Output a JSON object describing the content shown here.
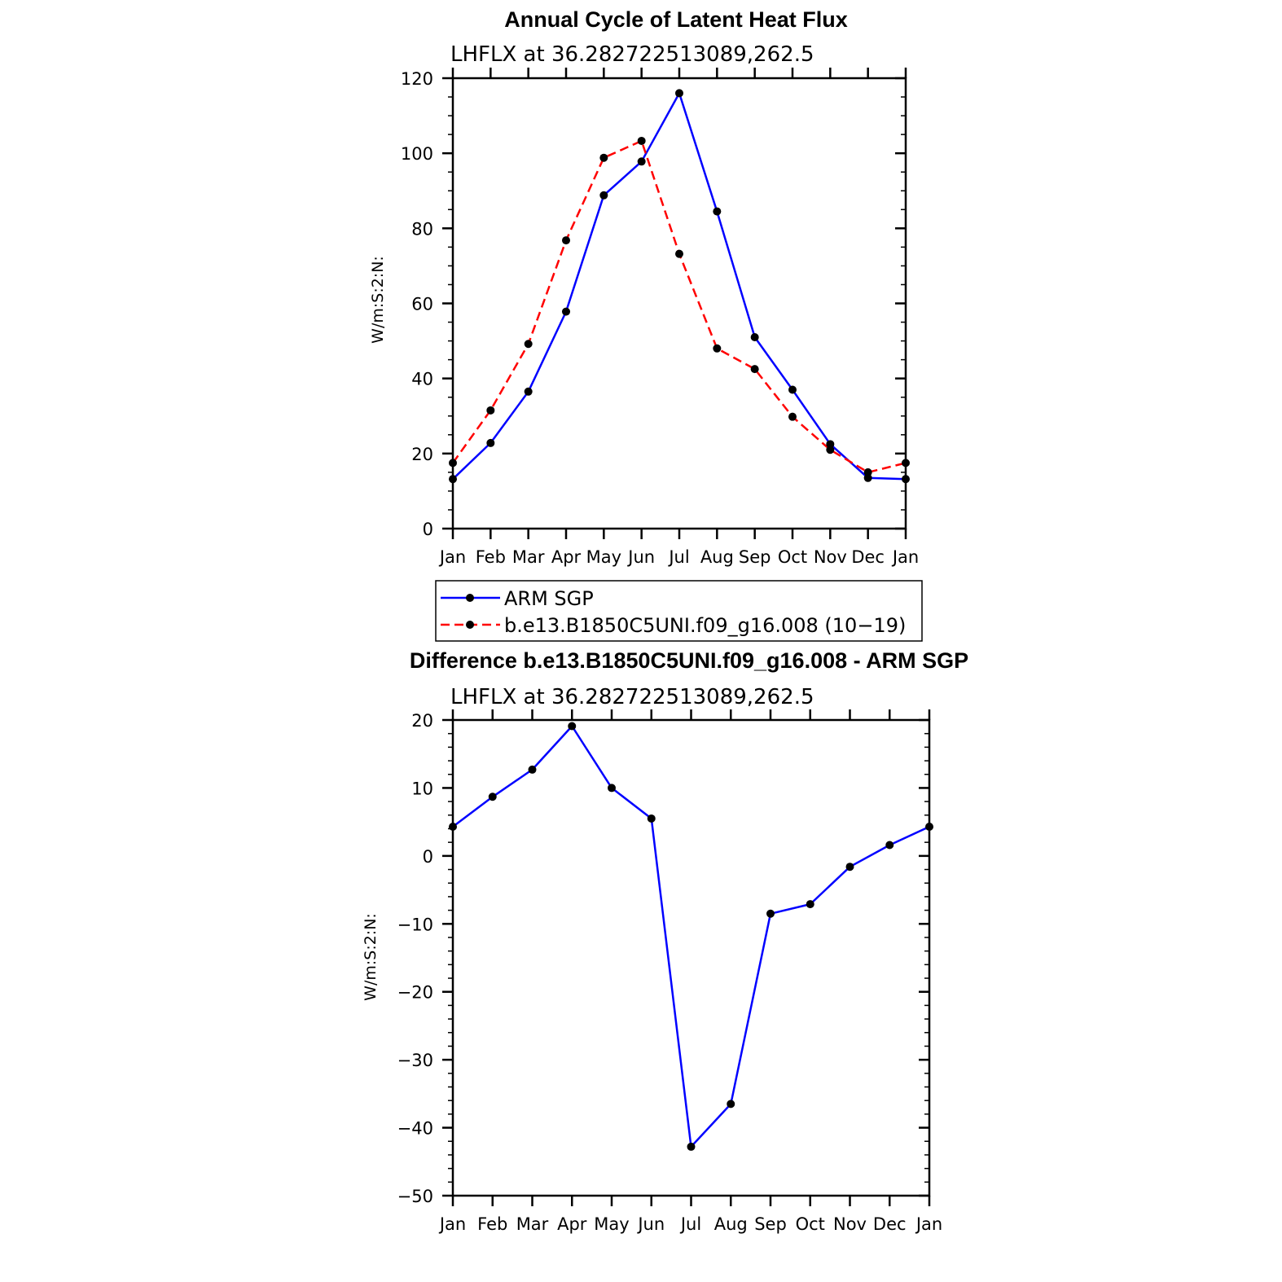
{
  "chart_data": [
    {
      "type": "line",
      "title": "Annual Cycle of Latent Heat Flux",
      "subtitle": "LHFLX at 36.282722513089,262.5",
      "xlabel": "",
      "ylabel": "W/m:S:2:N:",
      "ylim": [
        0,
        120
      ],
      "yticks": [
        "0",
        "20",
        "40",
        "60",
        "80",
        "100",
        "120"
      ],
      "categories": [
        "Jan",
        "Feb",
        "Mar",
        "Apr",
        "May",
        "Jun",
        "Jul",
        "Aug",
        "Sep",
        "Oct",
        "Nov",
        "Dec",
        "Jan"
      ],
      "series": [
        {
          "name": "ARM SGP",
          "color": "#0000ff",
          "dash": "solid",
          "values": [
            13.2,
            22.8,
            36.5,
            57.8,
            88.8,
            97.8,
            116.0,
            84.5,
            51.0,
            37.0,
            22.5,
            13.5,
            13.2
          ]
        },
        {
          "name": "b.e13.B1850C5UNI.f09_g16.008 (10−19)",
          "color": "#ff0000",
          "dash": "dashed",
          "values": [
            17.5,
            31.5,
            49.2,
            76.8,
            98.8,
            103.3,
            73.2,
            48.0,
            42.5,
            29.8,
            21.0,
            15.0,
            17.5
          ]
        }
      ]
    },
    {
      "type": "line",
      "title": "Difference b.e13.B1850C5UNI.f09_g16.008 - ARM SGP",
      "subtitle": "LHFLX at 36.282722513089,262.5",
      "xlabel": "",
      "ylabel": "W/m:S:2:N:",
      "ylim": [
        -50,
        20
      ],
      "yticks": [
        "−50",
        "−40",
        "−30",
        "−20",
        "−10",
        "0",
        "10",
        "20"
      ],
      "categories": [
        "Jan",
        "Feb",
        "Mar",
        "Apr",
        "May",
        "Jun",
        "Jul",
        "Aug",
        "Sep",
        "Oct",
        "Nov",
        "Dec",
        "Jan"
      ],
      "series": [
        {
          "name": "Difference",
          "color": "#0000ff",
          "dash": "solid",
          "values": [
            4.3,
            8.7,
            12.7,
            19.1,
            10.0,
            5.5,
            -42.8,
            -36.5,
            -8.5,
            -7.1,
            -1.6,
            1.6,
            4.3
          ]
        }
      ]
    }
  ]
}
